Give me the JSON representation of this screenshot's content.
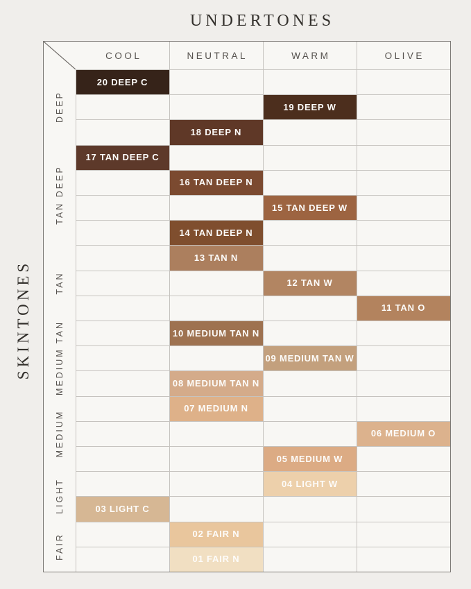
{
  "chart_data": {
    "type": "table",
    "title": "UNDERTONES",
    "ylabel": "SKINTONES",
    "columns": [
      "COOL",
      "NEUTRAL",
      "WARM",
      "OLIVE"
    ],
    "legend_position": "none",
    "grid": true,
    "row_groups": [
      {
        "label": "DEEP",
        "rows": 3
      },
      {
        "label": "TAN DEEP",
        "rows": 4
      },
      {
        "label": "TAN",
        "rows": 3
      },
      {
        "label": "MEDIUM TAN",
        "rows": 3
      },
      {
        "label": "MEDIUM",
        "rows": 3
      },
      {
        "label": "LIGHT",
        "rows": 2
      },
      {
        "label": "FAIR",
        "rows": 2
      }
    ],
    "shades": [
      {
        "label": "20 DEEP C",
        "undertone": "COOL",
        "skintone": "DEEP",
        "color": "#362319"
      },
      {
        "label": "19 DEEP W",
        "undertone": "WARM",
        "skintone": "DEEP",
        "color": "#4c2e1d"
      },
      {
        "label": "18 DEEP N",
        "undertone": "NEUTRAL",
        "skintone": "DEEP",
        "color": "#5f3827"
      },
      {
        "label": "17 TAN DEEP C",
        "undertone": "COOL",
        "skintone": "TAN DEEP",
        "color": "#5d392a"
      },
      {
        "label": "16 TAN DEEP N",
        "undertone": "NEUTRAL",
        "skintone": "TAN DEEP",
        "color": "#7b4a30"
      },
      {
        "label": "15 TAN DEEP W",
        "undertone": "WARM",
        "skintone": "TAN DEEP",
        "color": "#9d6441"
      },
      {
        "label": "14 TAN DEEP N",
        "undertone": "NEUTRAL",
        "skintone": "TAN DEEP",
        "color": "#7f4e2e"
      },
      {
        "label": "13 TAN N",
        "undertone": "NEUTRAL",
        "skintone": "TAN",
        "color": "#ac7f5e"
      },
      {
        "label": "12 TAN W",
        "undertone": "WARM",
        "skintone": "TAN",
        "color": "#b28562"
      },
      {
        "label": "11 TAN O",
        "undertone": "OLIVE",
        "skintone": "TAN",
        "color": "#b3835e"
      },
      {
        "label": "10 MEDIUM TAN N",
        "undertone": "NEUTRAL",
        "skintone": "MEDIUM TAN",
        "color": "#9e7250"
      },
      {
        "label": "09 MEDIUM TAN W",
        "undertone": "WARM",
        "skintone": "MEDIUM TAN",
        "color": "#c3a07d"
      },
      {
        "label": "08 MEDIUM TAN N",
        "undertone": "NEUTRAL",
        "skintone": "MEDIUM TAN",
        "color": "#d4ab8a"
      },
      {
        "label": "07 MEDIUM N",
        "undertone": "NEUTRAL",
        "skintone": "MEDIUM",
        "color": "#deb189"
      },
      {
        "label": "06 MEDIUM O",
        "undertone": "OLIVE",
        "skintone": "MEDIUM",
        "color": "#dcb28d"
      },
      {
        "label": "05 MEDIUM W",
        "undertone": "WARM",
        "skintone": "MEDIUM",
        "color": "#dcab84"
      },
      {
        "label": "04 LIGHT W",
        "undertone": "WARM",
        "skintone": "LIGHT",
        "color": "#edd0ab"
      },
      {
        "label": "03 LIGHT C",
        "undertone": "COOL",
        "skintone": "LIGHT",
        "color": "#d6b794"
      },
      {
        "label": "02 FAIR N",
        "undertone": "NEUTRAL",
        "skintone": "FAIR",
        "color": "#e9c69d"
      },
      {
        "label": "01 FAIR N",
        "undertone": "NEUTRAL",
        "skintone": "FAIR",
        "color": "#f1dfc2"
      }
    ]
  },
  "colors": {
    "page_bg": "#f0eeeb",
    "cell_bg": "#f8f7f4",
    "grid_line": "#c6c3bf",
    "outer_border": "#7d7a76",
    "heading_text": "#56524e",
    "title_text": "#33302c",
    "swatch_text": "#fdfcfa"
  }
}
